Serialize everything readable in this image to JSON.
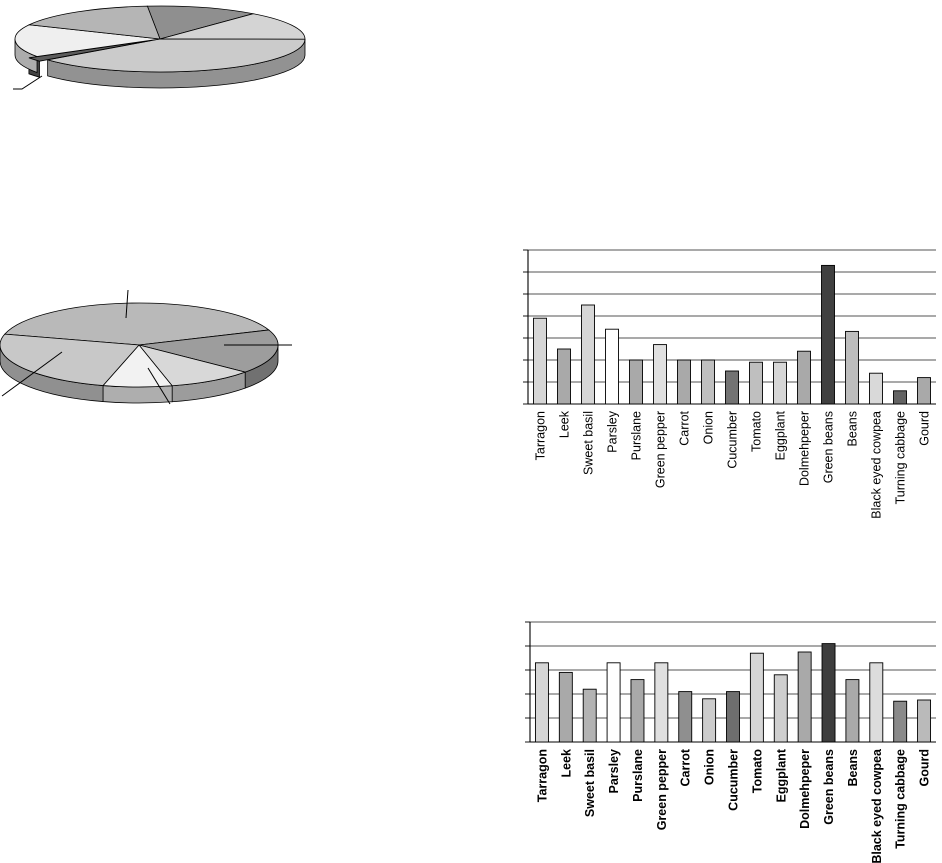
{
  "figure": {
    "background_color": "#ffffff"
  },
  "chart_data": [
    {
      "id": "pie-chart-top",
      "type": "pie",
      "style": "3d",
      "title": "",
      "start_angle_deg": -5,
      "labels_visible": false,
      "callout_lines": {
        "count": 1
      },
      "slices": [
        {
          "name": "slice-dark-top",
          "value": 12.5,
          "color": "#8f8f8f"
        },
        {
          "name": "slice-light-upper-right",
          "value": 14,
          "color": "#d4d4d4"
        },
        {
          "name": "slice-light-bottom-large",
          "value": 39,
          "color": "#cbcbcb"
        },
        {
          "name": "slice-dark-small-exploded",
          "value": 2,
          "color": "#5c5c5c",
          "explode": 10
        },
        {
          "name": "slice-white-left",
          "value": 16,
          "color": "#efefef"
        },
        {
          "name": "slice-gray-upper-left",
          "value": 16.5,
          "color": "#b5b5b5"
        }
      ]
    },
    {
      "id": "pie-chart-middle",
      "type": "pie",
      "style": "3d",
      "title": "",
      "start_angle_deg": -75,
      "labels_visible": false,
      "callout_lines": {
        "count": 4
      },
      "slices": [
        {
          "name": "slice-gray-top-large",
          "value": 40,
          "color": "#b9b9b9"
        },
        {
          "name": "slice-dark-right",
          "value": 17,
          "color": "#9d9d9d"
        },
        {
          "name": "slice-light-lower-right",
          "value": 10,
          "color": "#d8d8d8"
        },
        {
          "name": "slice-white-bottom",
          "value": 8,
          "color": "#f2f2f2"
        },
        {
          "name": "slice-light-left",
          "value": 25,
          "color": "#c8c8c8"
        }
      ]
    },
    {
      "id": "bar-chart-top",
      "type": "bar",
      "title": "",
      "xlabel": "",
      "ylabel": "",
      "grid": true,
      "legend": false,
      "y_axis": {
        "min": 0,
        "max": 7,
        "gridline_step": 1,
        "tick_labels_visible": false
      },
      "categories": [
        "Tarragon",
        "Leek",
        "Sweet basil",
        "Parsley",
        "Purslane",
        "Green pepper",
        "Carrot",
        "Onion",
        "Cucumber",
        "Tomato",
        "Eggplant",
        "Dolmehpeper",
        "Green beans",
        "Beans",
        "Black eyed cowpea",
        "Turning cabbage",
        "Gourd"
      ],
      "values": [
        3.9,
        2.5,
        4.5,
        3.4,
        2.0,
        2.7,
        2.0,
        2.0,
        1.5,
        1.9,
        1.9,
        2.4,
        6.3,
        3.3,
        1.4,
        0.6,
        1.2
      ],
      "colors": [
        "#d6d6d6",
        "#a9a9a9",
        "#d6d6d6",
        "#ffffff",
        "#a9a9a9",
        "#e0e0e0",
        "#a9a9a9",
        "#bfbfbf",
        "#737373",
        "#bfbfbf",
        "#d6d6d6",
        "#a9a9a9",
        "#404040",
        "#bdbdbd",
        "#d9d9d9",
        "#636363",
        "#a9a9a9"
      ]
    },
    {
      "id": "bar-chart-bottom",
      "type": "bar",
      "title": "",
      "xlabel": "",
      "ylabel": "",
      "grid": true,
      "legend": false,
      "y_axis": {
        "min": 0,
        "max": 5,
        "gridline_step": 1,
        "tick_labels_visible": false
      },
      "categories": [
        "Tarragon",
        "Leek",
        "Sweet basil",
        "Parsley",
        "Purslane",
        "Green pepper",
        "Carrot",
        "Onion",
        "Cucumber",
        "Tomato",
        "Eggplant",
        "Dolmehpeper",
        "Green beans",
        "Beans",
        "Black eyed cowpea",
        "Turning cabbage",
        "Gourd"
      ],
      "values": [
        3.3,
        2.9,
        2.2,
        3.3,
        2.6,
        3.3,
        2.1,
        1.8,
        2.1,
        3.7,
        2.8,
        3.75,
        4.1,
        2.6,
        3.3,
        1.7,
        1.75
      ],
      "colors": [
        "#d6d6d6",
        "#a9a9a9",
        "#b3b3b3",
        "#ffffff",
        "#a9a9a9",
        "#e0e0e0",
        "#8f8f8f",
        "#cccccc",
        "#6e6e6e",
        "#d6d6d6",
        "#cfcfcf",
        "#a9a9a9",
        "#3d3d3d",
        "#a9a9a9",
        "#dcdcdc",
        "#8a8a8a",
        "#bababa"
      ]
    }
  ]
}
